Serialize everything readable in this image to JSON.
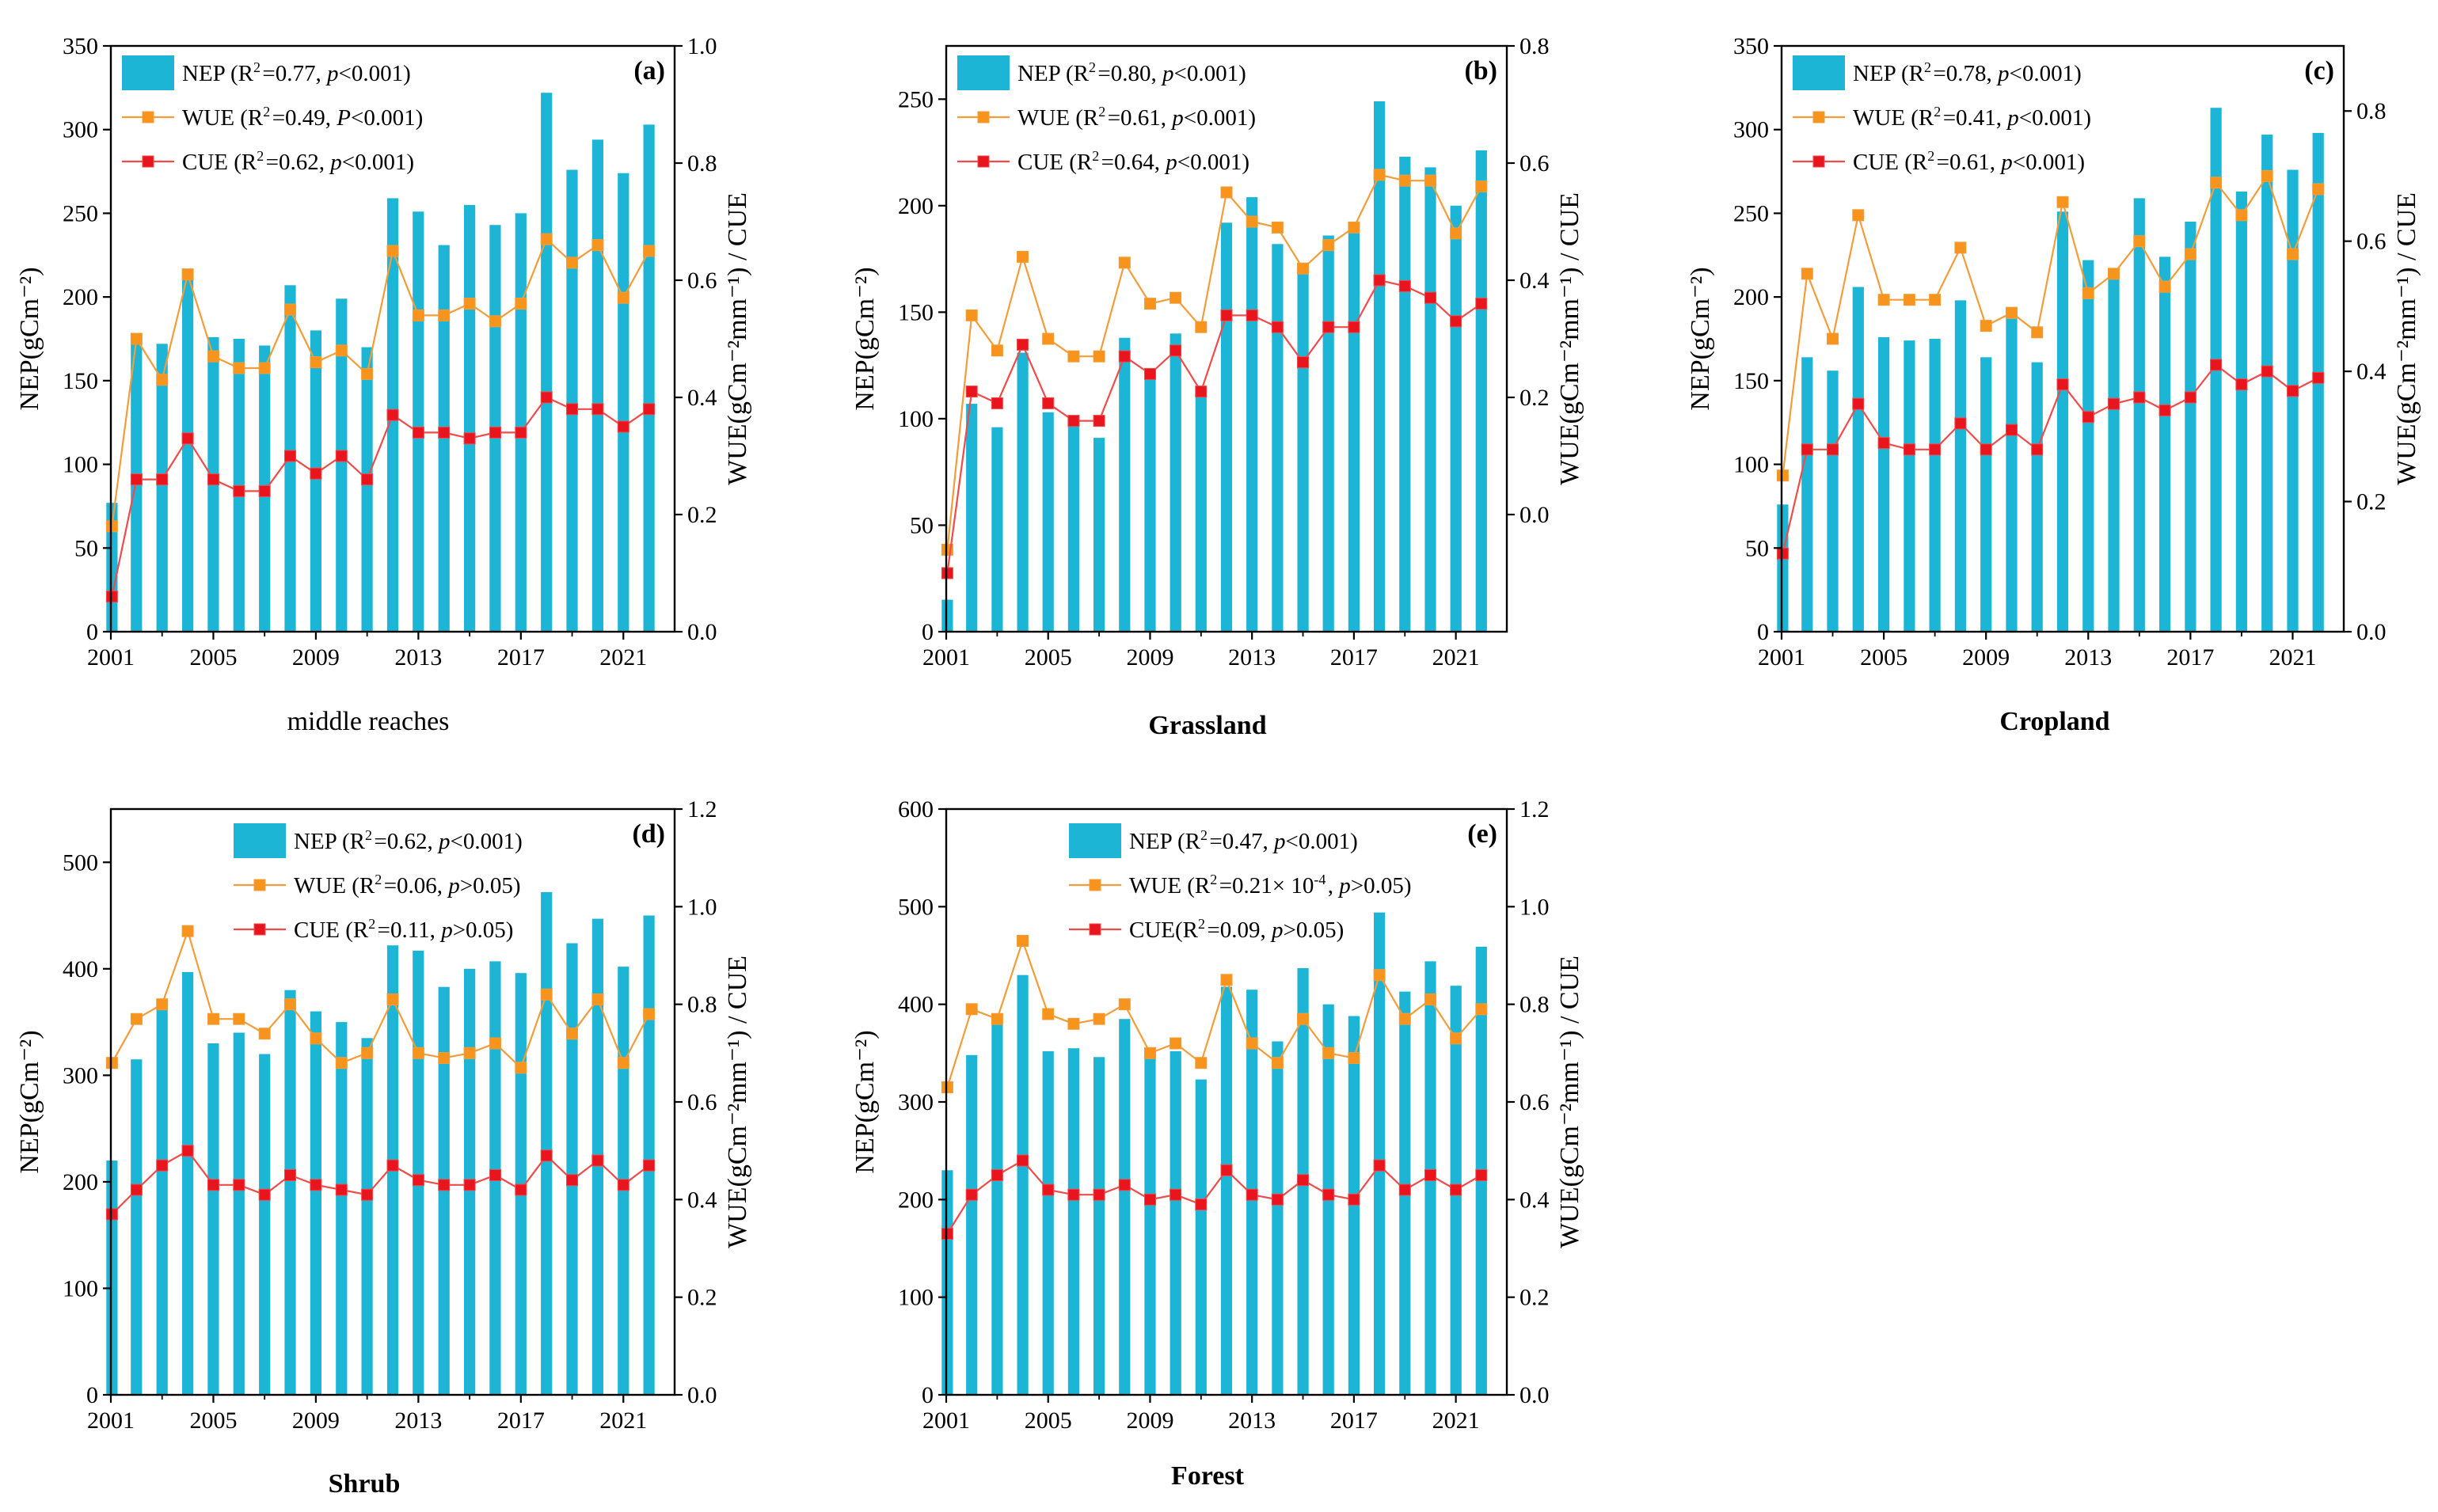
{
  "colors": {
    "bar": "#1cb5d6",
    "wue": "#f29d3a",
    "cue": "#f04b4b",
    "wue_marker": "#f7941d",
    "cue_marker": "#e8141e",
    "axis": "#000000"
  },
  "chart_data": [
    {
      "type": "bar",
      "panel_label": "(a)",
      "caption": "middle reaches",
      "caption_bold": false,
      "title": "middle reaches",
      "xlabel": "",
      "ylabel_left": "NEP(gCm⁻²)",
      "ylabel_right": "WUE(gCm⁻²mm⁻¹) / CUE",
      "ylim": [
        0,
        350
      ],
      "yticks": [
        0,
        50,
        100,
        150,
        200,
        250,
        300,
        350
      ],
      "ylim_right": [
        0,
        1.0
      ],
      "yticks_right": [
        0.0,
        0.2,
        0.4,
        0.6,
        0.8,
        1.0
      ],
      "xlim": [
        2001,
        2023
      ],
      "xticks": [
        2001,
        2005,
        2009,
        2013,
        2017,
        2021
      ],
      "legend_position": "top-left",
      "legend": [
        {
          "key": "NEP",
          "text": "NEP (R²=0.77, p<0.001)"
        },
        {
          "key": "WUE",
          "text": "WUE (R²=0.49, P<0.001)"
        },
        {
          "key": "CUE",
          "text": "CUE (R²=0.62, p<0.001)"
        }
      ],
      "years": [
        2001,
        2002,
        2003,
        2004,
        2005,
        2006,
        2007,
        2008,
        2009,
        2010,
        2011,
        2012,
        2013,
        2014,
        2015,
        2016,
        2017,
        2018,
        2019,
        2020,
        2021,
        2022
      ],
      "series": [
        {
          "name": "NEP",
          "axis": "left",
          "values": [
            77,
            172,
            172,
            216,
            176,
            175,
            171,
            207,
            180,
            199,
            170,
            259,
            251,
            231,
            255,
            243,
            250,
            322,
            276,
            294,
            274,
            303
          ]
        },
        {
          "name": "WUE",
          "axis": "right",
          "values": [
            0.18,
            0.5,
            0.43,
            0.61,
            0.47,
            0.45,
            0.45,
            0.55,
            0.46,
            0.48,
            0.44,
            0.65,
            0.54,
            0.54,
            0.56,
            0.53,
            0.56,
            0.67,
            0.63,
            0.66,
            0.57,
            0.65
          ]
        },
        {
          "name": "CUE",
          "axis": "right",
          "values": [
            0.06,
            0.26,
            0.26,
            0.33,
            0.26,
            0.24,
            0.24,
            0.3,
            0.27,
            0.3,
            0.26,
            0.37,
            0.34,
            0.34,
            0.33,
            0.34,
            0.34,
            0.4,
            0.38,
            0.38,
            0.35,
            0.38
          ]
        }
      ]
    },
    {
      "type": "bar",
      "panel_label": "(b)",
      "caption": "Grassland",
      "caption_bold": true,
      "title": "Grassland",
      "xlabel": "",
      "ylabel_left": "NEP(gCm⁻²)",
      "ylabel_right": "WUE(gCm⁻²mm⁻¹) / CUE",
      "ylim": [
        0,
        275
      ],
      "yticks": [
        0,
        50,
        100,
        150,
        200,
        250
      ],
      "ylim_right": [
        -0.2,
        0.8
      ],
      "yticks_right": [
        0.0,
        0.2,
        0.4,
        0.6,
        0.8
      ],
      "xlim": [
        2001,
        2023
      ],
      "xticks": [
        2001,
        2005,
        2009,
        2013,
        2017,
        2021
      ],
      "legend_position": "top-left",
      "legend": [
        {
          "key": "NEP",
          "text": "NEP (R²=0.80, p<0.001)"
        },
        {
          "key": "WUE",
          "text": "WUE (R²=0.61, p<0.001)"
        },
        {
          "key": "CUE",
          "text": "CUE (R²=0.64, p<0.001)"
        }
      ],
      "years": [
        2001,
        2002,
        2003,
        2004,
        2005,
        2006,
        2007,
        2008,
        2009,
        2010,
        2011,
        2012,
        2013,
        2014,
        2015,
        2016,
        2017,
        2018,
        2019,
        2020,
        2021,
        2022
      ],
      "series": [
        {
          "name": "NEP",
          "axis": "left",
          "values": [
            15,
            107,
            96,
            131,
            103,
            99,
            91,
            138,
            119,
            140,
            112,
            192,
            204,
            182,
            170,
            186,
            190,
            249,
            223,
            218,
            200,
            226
          ]
        },
        {
          "name": "WUE",
          "axis": "right",
          "values": [
            -0.06,
            0.34,
            0.28,
            0.44,
            0.3,
            0.27,
            0.27,
            0.43,
            0.36,
            0.37,
            0.32,
            0.55,
            0.5,
            0.49,
            0.42,
            0.46,
            0.49,
            0.58,
            0.57,
            0.57,
            0.48,
            0.56
          ]
        },
        {
          "name": "CUE",
          "axis": "right",
          "values": [
            -0.1,
            0.21,
            0.19,
            0.29,
            0.19,
            0.16,
            0.16,
            0.27,
            0.24,
            0.28,
            0.21,
            0.34,
            0.34,
            0.32,
            0.26,
            0.32,
            0.32,
            0.4,
            0.39,
            0.37,
            0.33,
            0.36
          ]
        }
      ]
    },
    {
      "type": "bar",
      "panel_label": "(c)",
      "caption": "Cropland",
      "caption_bold": true,
      "title": "Cropland",
      "xlabel": "",
      "ylabel_left": "NEP(gCm⁻²)",
      "ylabel_right": "WUE(gCm⁻²mm⁻¹) / CUE",
      "ylim": [
        0,
        350
      ],
      "yticks": [
        0,
        50,
        100,
        150,
        200,
        250,
        300,
        350
      ],
      "ylim_right": [
        0,
        0.9
      ],
      "yticks_right": [
        0.0,
        0.2,
        0.4,
        0.6,
        0.8
      ],
      "xlim": [
        2001,
        2023
      ],
      "xticks": [
        2001,
        2005,
        2009,
        2013,
        2017,
        2021
      ],
      "legend_position": "top-left",
      "legend": [
        {
          "key": "NEP",
          "text": "NEP (R²=0.78, p<0.001)"
        },
        {
          "key": "WUE",
          "text": "WUE (R²=0.41, p<0.001)"
        },
        {
          "key": "CUE",
          "text": "CUE (R²=0.61, p<0.001)"
        }
      ],
      "years": [
        2001,
        2002,
        2003,
        2004,
        2005,
        2006,
        2007,
        2008,
        2009,
        2010,
        2011,
        2012,
        2013,
        2014,
        2015,
        2016,
        2017,
        2018,
        2019,
        2020,
        2021,
        2022
      ],
      "series": [
        {
          "name": "NEP",
          "axis": "left",
          "values": [
            76,
            164,
            156,
            206,
            176,
            174,
            175,
            198,
            164,
            187,
            161,
            251,
            222,
            216,
            259,
            224,
            245,
            313,
            263,
            297,
            276,
            298
          ]
        },
        {
          "name": "WUE",
          "axis": "right",
          "values": [
            0.24,
            0.55,
            0.45,
            0.64,
            0.51,
            0.51,
            0.51,
            0.59,
            0.47,
            0.49,
            0.46,
            0.66,
            0.52,
            0.55,
            0.6,
            0.53,
            0.58,
            0.69,
            0.64,
            0.7,
            0.58,
            0.68
          ]
        },
        {
          "name": "CUE",
          "axis": "right",
          "values": [
            0.12,
            0.28,
            0.28,
            0.35,
            0.29,
            0.28,
            0.28,
            0.32,
            0.28,
            0.31,
            0.28,
            0.38,
            0.33,
            0.35,
            0.36,
            0.34,
            0.36,
            0.41,
            0.38,
            0.4,
            0.37,
            0.39
          ]
        }
      ]
    },
    {
      "type": "bar",
      "panel_label": "(d)",
      "caption": "Shrub",
      "caption_bold": true,
      "title": "Shrub",
      "xlabel": "",
      "ylabel_left": "NEP(gCm⁻²)",
      "ylabel_right": "WUE(gCm⁻²mm⁻¹) / CUE",
      "ylim": [
        0,
        550
      ],
      "yticks": [
        0,
        100,
        200,
        300,
        400,
        500
      ],
      "ylim_right": [
        0,
        1.2
      ],
      "yticks_right": [
        0.0,
        0.2,
        0.4,
        0.6,
        0.8,
        1.0,
        1.2
      ],
      "xlim": [
        2001,
        2023
      ],
      "xticks": [
        2001,
        2005,
        2009,
        2013,
        2017,
        2021
      ],
      "legend_position": "top-center",
      "legend": [
        {
          "key": "NEP",
          "text": "NEP (R²=0.62, p<0.001)"
        },
        {
          "key": "WUE",
          "text": "WUE (R²=0.06, p>0.05)"
        },
        {
          "key": "CUE",
          "text": "CUE (R²=0.11, p>0.05)"
        }
      ],
      "years": [
        2001,
        2002,
        2003,
        2004,
        2005,
        2006,
        2007,
        2008,
        2009,
        2010,
        2011,
        2012,
        2013,
        2014,
        2015,
        2016,
        2017,
        2018,
        2019,
        2020,
        2021,
        2022
      ],
      "series": [
        {
          "name": "NEP",
          "axis": "left",
          "values": [
            220,
            315,
            368,
            397,
            330,
            340,
            320,
            380,
            360,
            350,
            335,
            422,
            417,
            383,
            400,
            407,
            396,
            472,
            424,
            447,
            402,
            450
          ]
        },
        {
          "name": "WUE",
          "axis": "right",
          "values": [
            0.68,
            0.77,
            0.8,
            0.95,
            0.77,
            0.77,
            0.74,
            0.8,
            0.73,
            0.68,
            0.7,
            0.81,
            0.7,
            0.69,
            0.7,
            0.72,
            0.67,
            0.82,
            0.74,
            0.81,
            0.68,
            0.78
          ]
        },
        {
          "name": "CUE",
          "axis": "right",
          "values": [
            0.37,
            0.42,
            0.47,
            0.5,
            0.43,
            0.43,
            0.41,
            0.45,
            0.43,
            0.42,
            0.41,
            0.47,
            0.44,
            0.43,
            0.43,
            0.45,
            0.42,
            0.49,
            0.44,
            0.48,
            0.43,
            0.47
          ]
        }
      ]
    },
    {
      "type": "bar",
      "panel_label": "(e)",
      "caption": "Forest",
      "caption_bold": true,
      "title": "Forest",
      "xlabel": "",
      "ylabel_left": "NEP(gCm⁻²)",
      "ylabel_right": "WUE(gCm⁻²mm⁻¹) / CUE",
      "ylim": [
        0,
        600
      ],
      "yticks": [
        0,
        100,
        200,
        300,
        400,
        500,
        600
      ],
      "ylim_right": [
        0,
        1.2
      ],
      "yticks_right": [
        0.0,
        0.2,
        0.4,
        0.6,
        0.8,
        1.0,
        1.2
      ],
      "xlim": [
        2001,
        2023
      ],
      "xticks": [
        2001,
        2005,
        2009,
        2013,
        2017,
        2021
      ],
      "legend_position": "top-center",
      "legend": [
        {
          "key": "NEP",
          "text": "NEP (R²=0.47, p<0.001)"
        },
        {
          "key": "WUE",
          "text": "WUE (R²=0.21× 10⁻⁴,   p>0.05)"
        },
        {
          "key": "CUE",
          "text": "CUE(R²=0.09, p>0.05)"
        }
      ],
      "years": [
        2001,
        2002,
        2003,
        2004,
        2005,
        2006,
        2007,
        2008,
        2009,
        2010,
        2011,
        2012,
        2013,
        2014,
        2015,
        2016,
        2017,
        2018,
        2019,
        2020,
        2021,
        2022
      ],
      "series": [
        {
          "name": "NEP",
          "axis": "left",
          "values": [
            230,
            348,
            384,
            430,
            352,
            355,
            346,
            385,
            345,
            352,
            323,
            418,
            415,
            362,
            437,
            400,
            388,
            494,
            413,
            444,
            419,
            459
          ]
        },
        {
          "name": "WUE",
          "axis": "right",
          "values": [
            0.63,
            0.79,
            0.77,
            0.93,
            0.78,
            0.76,
            0.77,
            0.8,
            0.7,
            0.72,
            0.68,
            0.85,
            0.72,
            0.68,
            0.77,
            0.7,
            0.69,
            0.86,
            0.77,
            0.81,
            0.73,
            0.79
          ]
        },
        {
          "name": "CUE",
          "axis": "right",
          "values": [
            0.33,
            0.41,
            0.45,
            0.48,
            0.42,
            0.41,
            0.41,
            0.43,
            0.4,
            0.41,
            0.39,
            0.46,
            0.41,
            0.4,
            0.44,
            0.41,
            0.4,
            0.47,
            0.42,
            0.45,
            0.42,
            0.45
          ]
        }
      ]
    }
  ]
}
